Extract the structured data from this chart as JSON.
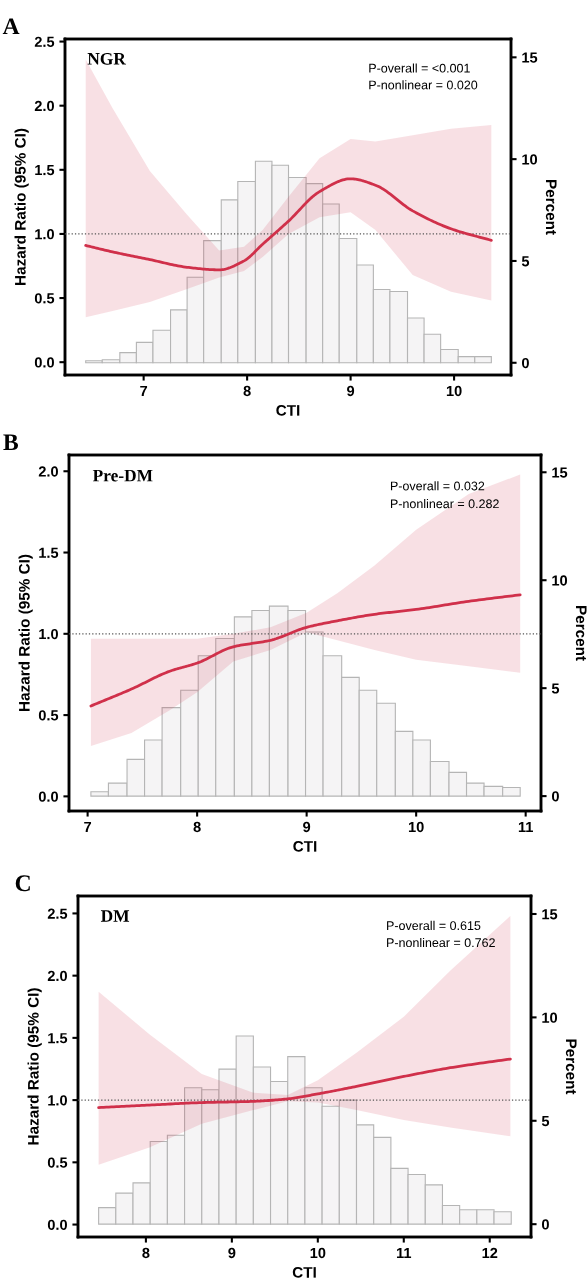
{
  "chart_data": [
    {
      "type": "line",
      "title": "A",
      "subtitle": "NGR",
      "xlabel": "CTI",
      "ylabel": "Hazard Ratio (95% CI)",
      "y2label": "Percent",
      "annotations": [
        "P-overall = <0.001",
        "P-nonlinear = 0.020"
      ],
      "xlim": [
        6.24,
        10.55
      ],
      "xticks": [
        7,
        8,
        9,
        10
      ],
      "ylim": [
        -0.1,
        2.52
      ],
      "yticks": [
        {
          "value": 0,
          "label": "0.0"
        },
        0.5,
        {
          "value": 1,
          "label": "1.0"
        },
        1.5,
        {
          "value": 2,
          "label": "2.0"
        },
        2.5
      ],
      "y2lim": [
        -0.6,
        15.9
      ],
      "y2ticks": [
        0,
        5,
        10,
        15
      ],
      "grid": false,
      "ref_lines": [
        {
          "axis": "y",
          "value": 1.0,
          "line_style": "dotted",
          "color": "#555555"
        }
      ],
      "series": [
        {
          "type": "histogram",
          "axis": "y2",
          "color": "#f5f4f5",
          "bins": [
            6.44,
            6.6,
            6.77,
            6.93,
            7.09,
            7.26,
            7.42,
            7.58,
            7.75,
            7.91,
            8.08,
            8.24,
            8.4,
            8.57,
            8.73,
            8.89,
            9.06,
            9.22,
            9.38,
            9.55,
            9.71,
            9.87,
            10.04,
            10.2,
            10.36
          ],
          "values": [
            0.1,
            0.15,
            0.5,
            1.0,
            1.6,
            2.6,
            4.2,
            6.0,
            8.0,
            8.9,
            9.9,
            9.7,
            9.1,
            8.8,
            7.8,
            6.1,
            4.8,
            3.6,
            3.5,
            2.2,
            1.4,
            0.65,
            0.3,
            0.3
          ]
        },
        {
          "axis": "y",
          "color": "#d0304a",
          "x": [
            6.44,
            6.7,
            7.06,
            7.42,
            7.73,
            7.97,
            8.15,
            8.4,
            8.7,
            9.0,
            9.24,
            9.6,
            9.97,
            10.36
          ],
          "values": [
            0.91,
            0.86,
            0.8,
            0.74,
            0.72,
            0.79,
            0.92,
            1.1,
            1.33,
            1.43,
            1.38,
            1.18,
            1.04,
            0.95
          ],
          "lower": [
            0.35,
            0.4,
            0.47,
            0.57,
            0.66,
            0.71,
            0.82,
            1.0,
            1.13,
            1.17,
            1.03,
            0.68,
            0.55,
            0.48
          ],
          "upper": [
            2.36,
            1.98,
            1.49,
            1.15,
            0.87,
            0.9,
            1.03,
            1.29,
            1.59,
            1.74,
            1.72,
            1.77,
            1.82,
            1.85
          ]
        }
      ]
    },
    {
      "type": "line",
      "title": "B",
      "subtitle": "Pre-DM",
      "xlabel": "CTI",
      "ylabel": "Hazard Ratio (95% CI)",
      "y2label": "Percent",
      "annotations": [
        "P-overall = 0.032",
        "P-nonlinear = 0.282"
      ],
      "xlim": [
        6.83,
        11.14
      ],
      "xticks": [
        7,
        8,
        9,
        10,
        11
      ],
      "ylim": [
        -0.09,
        2.1
      ],
      "yticks": [
        {
          "value": 0,
          "label": "0.0"
        },
        0.5,
        {
          "value": 1,
          "label": "1.0"
        },
        1.5,
        {
          "value": 2,
          "label": "2.0"
        }
      ],
      "y2lim": [
        -0.69,
        15.8
      ],
      "y2ticks": [
        0,
        5,
        10,
        15
      ],
      "grid": false,
      "ref_lines": [
        {
          "axis": "y",
          "value": 1.0,
          "line_style": "dotted",
          "color": "#555555"
        }
      ],
      "series": [
        {
          "type": "histogram",
          "axis": "y2",
          "color": "#f5f4f5",
          "bins": [
            7.03,
            7.19,
            7.36,
            7.52,
            7.68,
            7.85,
            8.01,
            8.17,
            8.34,
            8.5,
            8.66,
            8.83,
            8.99,
            9.15,
            9.32,
            9.48,
            9.64,
            9.81,
            9.97,
            10.13,
            10.3,
            10.46,
            10.62,
            10.79,
            10.95
          ],
          "values": [
            0.2,
            0.6,
            1.7,
            2.6,
            4.1,
            4.9,
            6.5,
            7.3,
            8.3,
            8.6,
            8.8,
            8.6,
            7.6,
            6.5,
            5.5,
            4.9,
            4.3,
            3.0,
            2.6,
            1.6,
            1.1,
            0.6,
            0.45,
            0.4
          ]
        },
        {
          "axis": "y",
          "color": "#d0304a",
          "x": [
            7.03,
            7.4,
            7.75,
            8.0,
            8.33,
            8.67,
            9.0,
            9.28,
            9.62,
            10.0,
            10.48,
            10.95
          ],
          "values": [
            0.556,
            0.66,
            0.77,
            0.82,
            0.92,
            0.96,
            1.04,
            1.08,
            1.12,
            1.15,
            1.2,
            1.24
          ],
          "lower": [
            0.31,
            0.39,
            0.53,
            0.64,
            0.83,
            0.9,
            1.01,
            0.96,
            0.9,
            0.84,
            0.8,
            0.76
          ],
          "upper": [
            0.97,
            0.97,
            0.97,
            0.97,
            1.0,
            1.04,
            1.13,
            1.25,
            1.42,
            1.64,
            1.86,
            1.98
          ]
        }
      ]
    },
    {
      "type": "line",
      "title": "C",
      "subtitle": "DM",
      "xlabel": "CTI",
      "ylabel": "Hazard Ratio (95% CI)",
      "y2label": "Percent",
      "annotations": [
        "P-overall = 0.615",
        "P-nonlinear = 0.762"
      ],
      "xlim": [
        7.21,
        12.48
      ],
      "xticks": [
        8,
        9,
        10,
        11,
        12
      ],
      "ylim": [
        -0.1,
        2.64
      ],
      "yticks": [
        {
          "value": 0,
          "label": "0.0"
        },
        0.5,
        {
          "value": 1,
          "label": "1.0"
        },
        1.5,
        {
          "value": 2,
          "label": "2.0"
        },
        2.5
      ],
      "y2lim": [
        -0.62,
        15.87
      ],
      "y2ticks": [
        0,
        5,
        10,
        15
      ],
      "grid": false,
      "ref_lines": [
        {
          "axis": "y",
          "value": 1.0,
          "line_style": "dotted",
          "color": "#555555"
        }
      ],
      "series": [
        {
          "type": "histogram",
          "axis": "y2",
          "color": "#f5f4f5",
          "bins": [
            7.45,
            7.65,
            7.85,
            8.05,
            8.25,
            8.45,
            8.65,
            8.85,
            9.05,
            9.25,
            9.45,
            9.65,
            9.85,
            10.05,
            10.25,
            10.45,
            10.65,
            10.85,
            11.05,
            11.25,
            11.45,
            11.65,
            11.85,
            12.05,
            12.25
          ],
          "values": [
            0.8,
            1.5,
            2.0,
            4.0,
            4.3,
            6.6,
            6.5,
            7.5,
            9.1,
            7.6,
            6.9,
            8.1,
            6.6,
            5.7,
            6.0,
            4.8,
            4.2,
            2.7,
            2.4,
            1.9,
            0.9,
            0.7,
            0.7,
            0.6
          ]
        },
        {
          "axis": "y",
          "color": "#d0304a",
          "x": [
            7.45,
            8.04,
            8.65,
            9.25,
            9.65,
            10.0,
            10.45,
            11.0,
            11.54,
            12.24
          ],
          "values": [
            0.94,
            0.96,
            0.98,
            0.99,
            1.01,
            1.05,
            1.11,
            1.19,
            1.26,
            1.33
          ],
          "lower": [
            0.48,
            0.62,
            0.81,
            0.92,
            0.99,
            0.98,
            0.92,
            0.84,
            0.78,
            0.71
          ],
          "upper": [
            1.87,
            1.53,
            1.21,
            1.06,
            1.04,
            1.16,
            1.38,
            1.67,
            2.04,
            2.48
          ]
        }
      ]
    }
  ]
}
